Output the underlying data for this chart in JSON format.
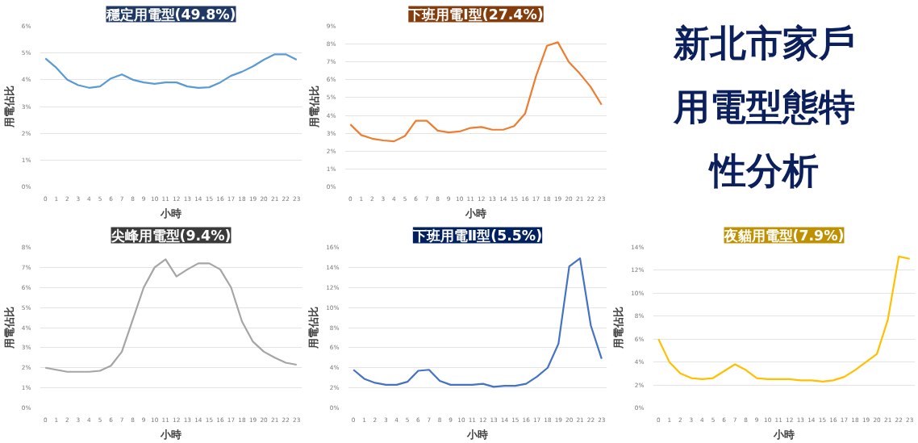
{
  "chart_data": [
    {
      "type": "line",
      "title": "穩定用電型(49.8%)",
      "xlabel": "小時",
      "ylabel": "用電佔比",
      "x": [
        0,
        1,
        2,
        3,
        4,
        5,
        6,
        7,
        8,
        9,
        10,
        11,
        12,
        13,
        14,
        15,
        16,
        17,
        18,
        19,
        20,
        21,
        22,
        23
      ],
      "xlim": [
        -0.5,
        23.5
      ],
      "xticks": [
        0,
        1,
        2,
        3,
        4,
        5,
        6,
        7,
        8,
        9,
        10,
        11,
        12,
        13,
        14,
        15,
        16,
        17,
        18,
        19,
        20,
        21,
        22,
        23
      ],
      "series": [
        {
          "color": "#5b9bd5",
          "values": [
            4.8,
            4.45,
            4.0,
            3.8,
            3.7,
            3.75,
            4.05,
            4.2,
            4.0,
            3.9,
            3.85,
            3.9,
            3.9,
            3.75,
            3.7,
            3.72,
            3.9,
            4.15,
            4.3,
            4.5,
            4.75,
            4.95,
            4.95,
            4.75
          ]
        }
      ],
      "ylim": [
        0,
        6
      ],
      "yticks": [
        {
          "value": 0,
          "label": "0%"
        },
        {
          "value": 1,
          "label": "1%"
        },
        {
          "value": 2,
          "label": "2%"
        },
        {
          "value": 3,
          "label": "3%"
        },
        {
          "value": 4,
          "label": "4%"
        },
        {
          "value": 5,
          "label": "5%"
        },
        {
          "value": 6,
          "label": "6%"
        }
      ],
      "grid": "y"
    },
    {
      "type": "line",
      "title": "下班用電Ⅰ型(27.4%)",
      "xlabel": "小時",
      "ylabel": "用電佔比",
      "x": [
        0,
        1,
        2,
        3,
        4,
        5,
        6,
        7,
        8,
        9,
        10,
        11,
        12,
        13,
        14,
        15,
        16,
        17,
        18,
        19,
        20,
        21,
        22,
        23
      ],
      "xlim": [
        -0.5,
        23.5
      ],
      "xticks": [
        0,
        1,
        2,
        3,
        4,
        5,
        6,
        7,
        8,
        9,
        10,
        11,
        12,
        13,
        14,
        15,
        16,
        17,
        18,
        19,
        20,
        21,
        22,
        23
      ],
      "series": [
        {
          "color": "#ed7d31",
          "values": [
            3.5,
            2.9,
            2.7,
            2.6,
            2.55,
            2.85,
            3.7,
            3.7,
            3.15,
            3.05,
            3.1,
            3.3,
            3.35,
            3.2,
            3.2,
            3.4,
            4.1,
            6.2,
            7.9,
            8.1,
            7.0,
            6.35,
            5.6,
            4.6
          ]
        }
      ],
      "ylim": [
        0,
        9
      ],
      "yticks": [
        {
          "value": 0,
          "label": "0%"
        },
        {
          "value": 1,
          "label": "1%"
        },
        {
          "value": 2,
          "label": "2%"
        },
        {
          "value": 3,
          "label": "3%"
        },
        {
          "value": 4,
          "label": "4%"
        },
        {
          "value": 5,
          "label": "5%"
        },
        {
          "value": 6,
          "label": "6%"
        },
        {
          "value": 7,
          "label": "7%"
        },
        {
          "value": 8,
          "label": "8%"
        },
        {
          "value": 9,
          "label": "9%"
        }
      ],
      "grid": "y"
    },
    {
      "type": "other",
      "title": "新北市家戶用電型態特性分析"
    },
    {
      "type": "line",
      "title": "尖峰用電型(9.4%)",
      "xlabel": "小時",
      "ylabel": "用電佔比",
      "x": [
        0,
        1,
        2,
        3,
        4,
        5,
        6,
        7,
        8,
        9,
        10,
        11,
        12,
        13,
        14,
        15,
        16,
        17,
        18,
        19,
        20,
        21,
        22,
        23
      ],
      "xlim": [
        -0.5,
        23.5
      ],
      "xticks": [
        0,
        1,
        2,
        3,
        4,
        5,
        6,
        7,
        8,
        9,
        10,
        11,
        12,
        13,
        14,
        15,
        16,
        17,
        18,
        19,
        20,
        21,
        22,
        23
      ],
      "series": [
        {
          "color": "#a5a5a5",
          "values": [
            2.0,
            1.9,
            1.8,
            1.8,
            1.8,
            1.85,
            2.1,
            2.8,
            4.4,
            6.0,
            7.0,
            7.4,
            6.55,
            6.9,
            7.2,
            7.2,
            6.9,
            6.0,
            4.3,
            3.3,
            2.8,
            2.5,
            2.25,
            2.15
          ]
        }
      ],
      "ylim": [
        0,
        8
      ],
      "yticks": [
        {
          "value": 0,
          "label": "0%"
        },
        {
          "value": 1,
          "label": "1%"
        },
        {
          "value": 2,
          "label": "2%"
        },
        {
          "value": 3,
          "label": "3%"
        },
        {
          "value": 4,
          "label": "4%"
        },
        {
          "value": 5,
          "label": "5%"
        },
        {
          "value": 6,
          "label": "6%"
        },
        {
          "value": 7,
          "label": "7%"
        },
        {
          "value": 8,
          "label": "8%"
        }
      ],
      "grid": "y"
    },
    {
      "type": "line",
      "title": "下班用電Ⅱ型(5.5%)",
      "xlabel": "小時",
      "ylabel": "用電佔比",
      "x": [
        0,
        1,
        2,
        3,
        4,
        5,
        6,
        7,
        8,
        9,
        10,
        11,
        12,
        13,
        14,
        15,
        16,
        17,
        18,
        19,
        20,
        21,
        22,
        23
      ],
      "xlim": [
        -0.5,
        23.5
      ],
      "xticks": [
        0,
        1,
        2,
        3,
        4,
        5,
        6,
        7,
        8,
        9,
        10,
        11,
        12,
        13,
        14,
        15,
        16,
        17,
        18,
        19,
        20,
        21,
        22,
        23
      ],
      "series": [
        {
          "color": "#4472c4",
          "values": [
            3.8,
            2.9,
            2.5,
            2.3,
            2.3,
            2.6,
            3.7,
            3.8,
            2.7,
            2.3,
            2.3,
            2.3,
            2.4,
            2.1,
            2.2,
            2.2,
            2.4,
            3.1,
            4.0,
            6.4,
            14.1,
            14.9,
            8.2,
            4.9
          ]
        }
      ],
      "ylim": [
        0,
        16
      ],
      "yticks": [
        {
          "value": 0,
          "label": "0%"
        },
        {
          "value": 2,
          "label": "2%"
        },
        {
          "value": 4,
          "label": "4%"
        },
        {
          "value": 6,
          "label": "6%"
        },
        {
          "value": 8,
          "label": "8%"
        },
        {
          "value": 10,
          "label": "10%"
        },
        {
          "value": 12,
          "label": "12%"
        },
        {
          "value": 14,
          "label": "14%"
        },
        {
          "value": 16,
          "label": "16%"
        }
      ],
      "grid": "y"
    },
    {
      "type": "line",
      "title": "夜貓用電型(7.9%)",
      "xlabel": "小時",
      "ylabel": "用電佔比",
      "x": [
        0,
        1,
        2,
        3,
        4,
        5,
        6,
        7,
        8,
        9,
        10,
        11,
        12,
        13,
        14,
        15,
        16,
        17,
        18,
        19,
        20,
        21,
        22,
        23
      ],
      "xlim": [
        -0.5,
        23.5
      ],
      "xticks": [
        0,
        1,
        2,
        3,
        4,
        5,
        6,
        7,
        8,
        9,
        10,
        11,
        12,
        13,
        14,
        15,
        16,
        17,
        18,
        19,
        20,
        21,
        22,
        23
      ],
      "series": [
        {
          "color": "#ffc000",
          "values": [
            6.0,
            4.0,
            3.0,
            2.6,
            2.5,
            2.6,
            3.2,
            3.8,
            3.3,
            2.6,
            2.5,
            2.5,
            2.5,
            2.4,
            2.4,
            2.3,
            2.4,
            2.7,
            3.3,
            4.0,
            4.7,
            7.7,
            13.2,
            13.0
          ]
        }
      ],
      "ylim": [
        0,
        14
      ],
      "yticks": [
        {
          "value": 0,
          "label": "0%"
        },
        {
          "value": 2,
          "label": "2%"
        },
        {
          "value": 4,
          "label": "4%"
        },
        {
          "value": 6,
          "label": "6%"
        },
        {
          "value": 8,
          "label": "8%"
        },
        {
          "value": 10,
          "label": "10%"
        },
        {
          "value": 12,
          "label": "12%"
        },
        {
          "value": 14,
          "label": "14%"
        }
      ],
      "grid": "y"
    }
  ]
}
